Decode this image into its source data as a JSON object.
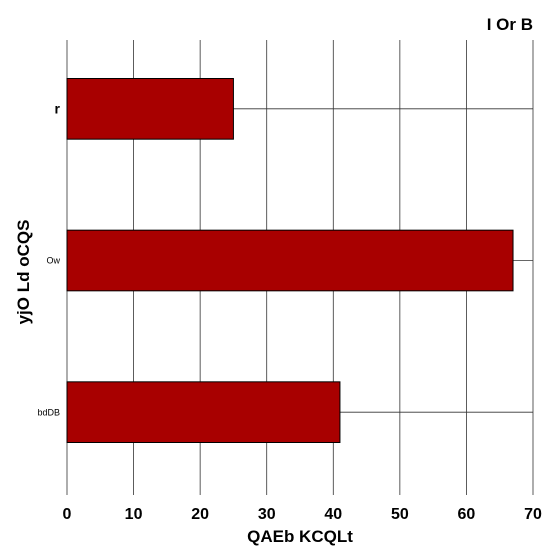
{
  "chart_data": {
    "type": "bar",
    "orientation": "horizontal",
    "title": "I Or B",
    "xlabel": "QAEb KCQLt",
    "ylabel": "yjO Ld oCQS",
    "categories": [
      "r",
      "Ow",
      "bdDB"
    ],
    "values": [
      25,
      67,
      41
    ],
    "xlim": [
      0,
      70
    ],
    "xticks": [
      0,
      10,
      20,
      30,
      40,
      50,
      60,
      70
    ],
    "grid": true,
    "bar_color": "#a80000",
    "bar_edge_color": "#000000"
  }
}
